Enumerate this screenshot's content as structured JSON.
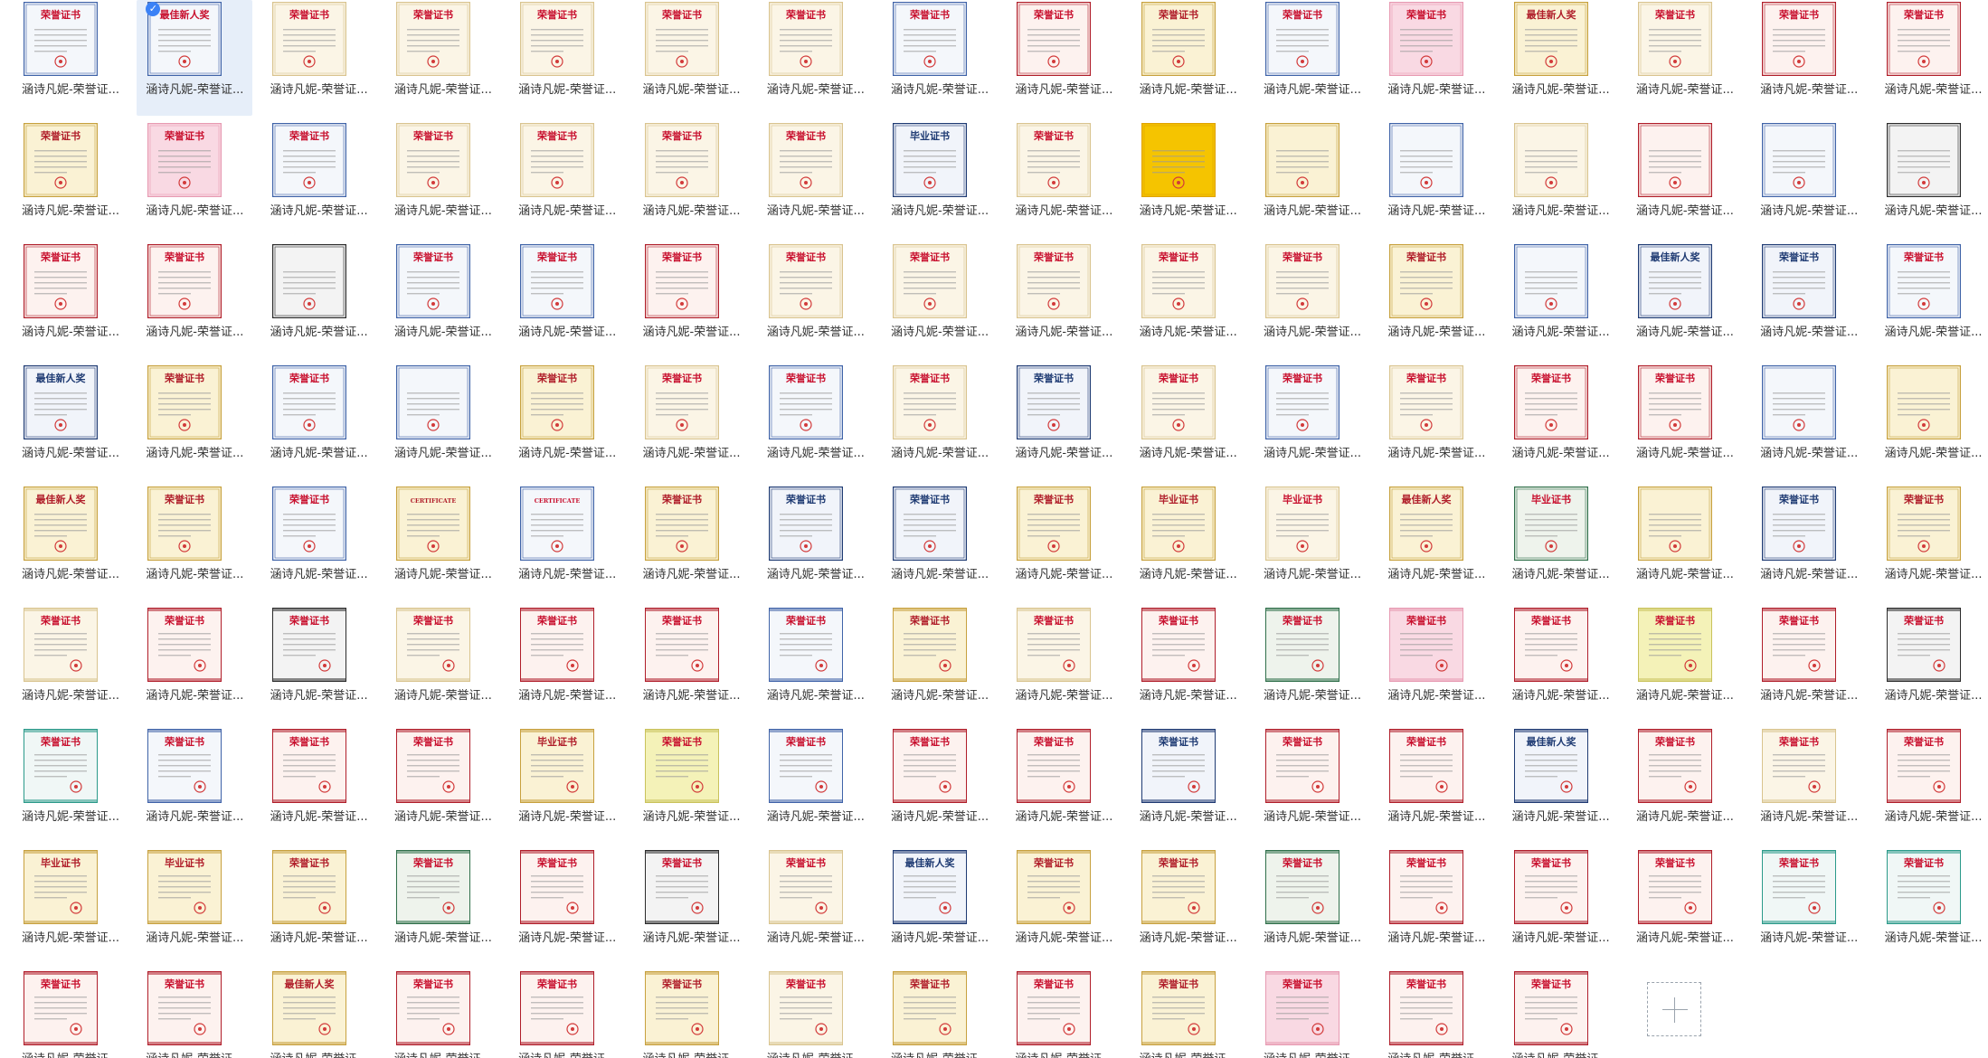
{
  "app": {
    "name": "file-browser-grid"
  },
  "caption_text": "涵诗凡妮-荣誉证...",
  "selected_index": 1,
  "palettes": {
    "cream": {
      "bg": "#fbf5e6",
      "border": "#d9c48f",
      "title": "#c8102e"
    },
    "blue": {
      "bg": "#f4f7fb",
      "border": "#3f63a8",
      "title": "#c8102e"
    },
    "pink": {
      "bg": "#f9d9e3",
      "border": "#e79ab2",
      "title": "#c8102e"
    },
    "red": {
      "bg": "#fdf2ef",
      "border": "#b01e2a",
      "title": "#c8102e"
    },
    "gold": {
      "bg": "#faf2d4",
      "border": "#c7a13e",
      "title": "#b01e2a"
    },
    "dark": {
      "bg": "#f3f3f3",
      "border": "#2b2b2b",
      "title": "#c8102e"
    },
    "yellow": {
      "bg": "#f5c400",
      "border": "#e0a300",
      "title": "#c8102e"
    },
    "green": {
      "bg": "#eef3ec",
      "border": "#2f6f4a",
      "title": "#c8102e"
    },
    "navy": {
      "bg": "#f1f4fa",
      "border": "#1f3b73",
      "title": "#1f3b73"
    },
    "lemon": {
      "bg": "#f4f2b8",
      "border": "#c9c25c",
      "title": "#c8102e"
    },
    "teal": {
      "bg": "#f0f7f6",
      "border": "#2b9a8a",
      "title": "#c8102e"
    }
  },
  "rows": [
    {
      "layout": "portrait",
      "tiles": [
        {
          "title": "荣誉证书",
          "palette": "blue"
        },
        {
          "title": "最佳新人奖",
          "palette": "blue"
        },
        {
          "title": "荣誉证书",
          "palette": "cream"
        },
        {
          "title": "荣誉证书",
          "palette": "cream"
        },
        {
          "title": "荣誉证书",
          "palette": "cream"
        },
        {
          "title": "荣誉证书",
          "palette": "cream"
        },
        {
          "title": "荣誉证书",
          "palette": "cream"
        },
        {
          "title": "荣誉证书",
          "palette": "blue"
        },
        {
          "title": "荣誉证书",
          "palette": "red"
        },
        {
          "title": "荣誉证书",
          "palette": "gold"
        },
        {
          "title": "荣誉证书",
          "palette": "blue"
        },
        {
          "title": "荣誉证书",
          "palette": "pink"
        },
        {
          "title": "最佳新人奖",
          "palette": "gold"
        },
        {
          "title": "荣誉证书",
          "palette": "cream"
        },
        {
          "title": "荣誉证书",
          "palette": "red"
        },
        {
          "title": "荣誉证书",
          "palette": "red"
        }
      ]
    },
    {
      "layout": "portrait",
      "tiles": [
        {
          "title": "荣誉证书",
          "palette": "gold"
        },
        {
          "title": "荣誉证书",
          "palette": "pink"
        },
        {
          "title": "荣誉证书",
          "palette": "blue"
        },
        {
          "title": "荣誉证书",
          "palette": "cream"
        },
        {
          "title": "荣誉证书",
          "palette": "cream"
        },
        {
          "title": "荣誉证书",
          "palette": "cream"
        },
        {
          "title": "荣誉证书",
          "palette": "cream"
        },
        {
          "title": "毕业证书",
          "palette": "navy"
        },
        {
          "title": "荣誉证书",
          "palette": "cream"
        },
        {
          "title": "",
          "palette": "yellow"
        },
        {
          "title": "",
          "palette": "gold"
        },
        {
          "title": "",
          "palette": "blue"
        },
        {
          "title": "",
          "palette": "cream"
        },
        {
          "title": "",
          "palette": "red"
        },
        {
          "title": "",
          "palette": "blue"
        },
        {
          "title": "",
          "palette": "dark"
        }
      ]
    },
    {
      "layout": "portrait",
      "tiles": [
        {
          "title": "荣誉证书",
          "palette": "red"
        },
        {
          "title": "荣誉证书",
          "palette": "red"
        },
        {
          "title": "",
          "palette": "dark"
        },
        {
          "title": "荣誉证书",
          "palette": "blue"
        },
        {
          "title": "荣誉证书",
          "palette": "blue"
        },
        {
          "title": "荣誉证书",
          "palette": "red"
        },
        {
          "title": "荣誉证书",
          "palette": "cream"
        },
        {
          "title": "荣誉证书",
          "palette": "cream"
        },
        {
          "title": "荣誉证书",
          "palette": "cream"
        },
        {
          "title": "荣誉证书",
          "palette": "cream"
        },
        {
          "title": "荣誉证书",
          "palette": "cream"
        },
        {
          "title": "荣誉证书",
          "palette": "gold"
        },
        {
          "title": "",
          "palette": "blue"
        },
        {
          "title": "最佳新人奖",
          "palette": "navy"
        },
        {
          "title": "荣誉证书",
          "palette": "navy"
        },
        {
          "title": "荣誉证书",
          "palette": "blue"
        }
      ]
    },
    {
      "layout": "portrait",
      "tiles": [
        {
          "title": "最佳新人奖",
          "palette": "navy"
        },
        {
          "title": "荣誉证书",
          "palette": "gold"
        },
        {
          "title": "荣誉证书",
          "palette": "blue"
        },
        {
          "title": "",
          "palette": "blue"
        },
        {
          "title": "荣誉证书",
          "palette": "gold"
        },
        {
          "title": "荣誉证书",
          "palette": "cream"
        },
        {
          "title": "荣誉证书",
          "palette": "blue"
        },
        {
          "title": "荣誉证书",
          "palette": "cream"
        },
        {
          "title": "荣誉证书",
          "palette": "navy"
        },
        {
          "title": "荣誉证书",
          "palette": "cream"
        },
        {
          "title": "荣誉证书",
          "palette": "blue"
        },
        {
          "title": "荣誉证书",
          "palette": "cream"
        },
        {
          "title": "荣誉证书",
          "palette": "red"
        },
        {
          "title": "荣誉证书",
          "palette": "red"
        },
        {
          "title": "",
          "palette": "blue"
        },
        {
          "title": "",
          "palette": "gold"
        }
      ]
    },
    {
      "layout": "portrait",
      "tiles": [
        {
          "title": "最佳新人奖",
          "palette": "gold"
        },
        {
          "title": "荣誉证书",
          "palette": "gold"
        },
        {
          "title": "荣誉证书",
          "palette": "blue"
        },
        {
          "title": "CERTIFICATE",
          "palette": "gold"
        },
        {
          "title": "CERTIFICATE",
          "palette": "blue"
        },
        {
          "title": "荣誉证书",
          "palette": "gold"
        },
        {
          "title": "荣誉证书",
          "palette": "navy"
        },
        {
          "title": "荣誉证书",
          "palette": "navy"
        },
        {
          "title": "荣誉证书",
          "palette": "gold"
        },
        {
          "title": "毕业证书",
          "palette": "gold"
        },
        {
          "title": "毕业证书",
          "palette": "cream"
        },
        {
          "title": "最佳新人奖",
          "palette": "gold"
        },
        {
          "title": "毕业证书",
          "palette": "green"
        },
        {
          "title": "",
          "palette": "gold"
        },
        {
          "title": "荣誉证书",
          "palette": "navy"
        },
        {
          "title": "荣誉证书",
          "palette": "gold"
        }
      ]
    },
    {
      "layout": "landscape",
      "tiles": [
        {
          "title": "荣誉证书",
          "palette": "cream"
        },
        {
          "title": "荣誉证书",
          "palette": "red"
        },
        {
          "title": "荣誉证书",
          "palette": "dark"
        },
        {
          "title": "荣誉证书",
          "palette": "cream"
        },
        {
          "title": "荣誉证书",
          "palette": "red"
        },
        {
          "title": "荣誉证书",
          "palette": "red"
        },
        {
          "title": "荣誉证书",
          "palette": "blue"
        },
        {
          "title": "荣誉证书",
          "palette": "gold"
        },
        {
          "title": "荣誉证书",
          "palette": "cream"
        },
        {
          "title": "荣誉证书",
          "palette": "red"
        },
        {
          "title": "荣誉证书",
          "palette": "green"
        },
        {
          "title": "荣誉证书",
          "palette": "pink"
        },
        {
          "title": "荣誉证书",
          "palette": "red"
        },
        {
          "title": "荣誉证书",
          "palette": "lemon"
        },
        {
          "title": "荣誉证书",
          "palette": "red"
        },
        {
          "title": "荣誉证书",
          "palette": "dark"
        }
      ]
    },
    {
      "layout": "landscape",
      "tiles": [
        {
          "title": "荣誉证书",
          "palette": "teal"
        },
        {
          "title": "荣誉证书",
          "palette": "blue"
        },
        {
          "title": "荣誉证书",
          "palette": "red"
        },
        {
          "title": "荣誉证书",
          "palette": "red"
        },
        {
          "title": "毕业证书",
          "palette": "gold"
        },
        {
          "title": "荣誉证书",
          "palette": "lemon"
        },
        {
          "title": "荣誉证书",
          "palette": "blue"
        },
        {
          "title": "荣誉证书",
          "palette": "red"
        },
        {
          "title": "荣誉证书",
          "palette": "red"
        },
        {
          "title": "荣誉证书",
          "palette": "navy"
        },
        {
          "title": "荣誉证书",
          "palette": "red"
        },
        {
          "title": "荣誉证书",
          "palette": "red"
        },
        {
          "title": "最佳新人奖",
          "palette": "navy"
        },
        {
          "title": "荣誉证书",
          "palette": "red"
        },
        {
          "title": "荣誉证书",
          "palette": "cream"
        },
        {
          "title": "荣誉证书",
          "palette": "red"
        }
      ]
    },
    {
      "layout": "landscape",
      "tiles": [
        {
          "title": "毕业证书",
          "palette": "gold"
        },
        {
          "title": "毕业证书",
          "palette": "gold"
        },
        {
          "title": "荣誉证书",
          "palette": "gold"
        },
        {
          "title": "荣誉证书",
          "palette": "green"
        },
        {
          "title": "荣誉证书",
          "palette": "red"
        },
        {
          "title": "荣誉证书",
          "palette": "dark"
        },
        {
          "title": "荣誉证书",
          "palette": "cream"
        },
        {
          "title": "最佳新人奖",
          "palette": "navy"
        },
        {
          "title": "荣誉证书",
          "palette": "gold"
        },
        {
          "title": "荣誉证书",
          "palette": "gold"
        },
        {
          "title": "荣誉证书",
          "palette": "green"
        },
        {
          "title": "荣誉证书",
          "palette": "red"
        },
        {
          "title": "荣誉证书",
          "palette": "red"
        },
        {
          "title": "荣誉证书",
          "palette": "red"
        },
        {
          "title": "荣誉证书",
          "palette": "teal"
        },
        {
          "title": "荣誉证书",
          "palette": "teal"
        }
      ]
    },
    {
      "layout": "landscape",
      "tiles": [
        {
          "title": "荣誉证书",
          "palette": "red"
        },
        {
          "title": "荣誉证书",
          "palette": "red"
        },
        {
          "title": "最佳新人奖",
          "palette": "gold"
        },
        {
          "title": "荣誉证书",
          "palette": "red"
        },
        {
          "title": "荣誉证书",
          "palette": "red"
        },
        {
          "title": "荣誉证书",
          "palette": "gold"
        },
        {
          "title": "荣誉证书",
          "palette": "cream"
        },
        {
          "title": "荣誉证书",
          "palette": "gold"
        },
        {
          "title": "荣誉证书",
          "palette": "red"
        },
        {
          "title": "荣誉证书",
          "palette": "gold"
        },
        {
          "title": "荣誉证书",
          "palette": "pink"
        },
        {
          "title": "荣誉证书",
          "palette": "red"
        },
        {
          "title": "荣誉证书",
          "palette": "red"
        }
      ]
    }
  ],
  "add_tile": {
    "icon": "plus-icon"
  }
}
